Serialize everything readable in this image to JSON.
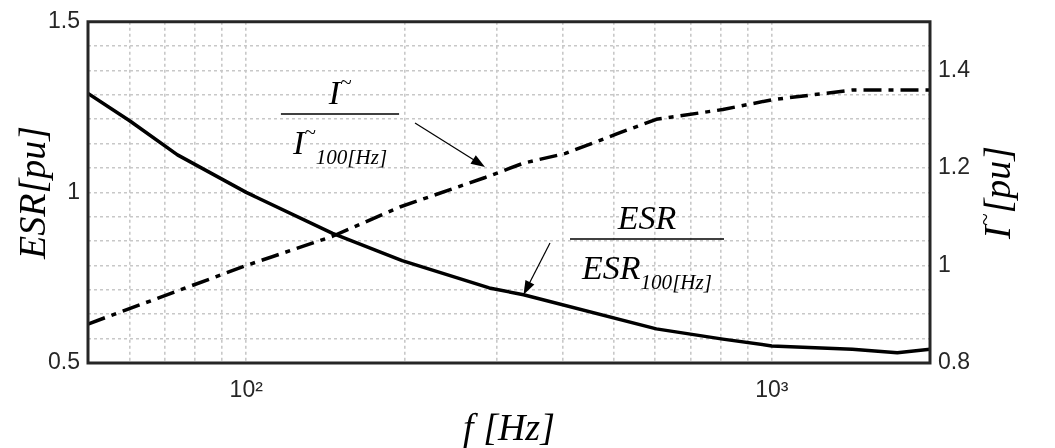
{
  "chart_data": {
    "type": "line",
    "xlabel": "f [Hz]",
    "ylabel": "ESR[pu]",
    "y2label": "I$^{~}$[pu]",
    "log": "x",
    "grid": true,
    "legend": false,
    "marker": "none",
    "xlim": [
      50,
      2000
    ],
    "xticks": [
      {
        "value": 60,
        "label": null
      },
      {
        "value": 70,
        "label": null
      },
      {
        "value": 80,
        "label": null
      },
      {
        "value": 90,
        "label": null
      },
      {
        "value": 100,
        "label": "10²"
      },
      {
        "value": 200,
        "label": null
      },
      {
        "value": 300,
        "label": null
      },
      {
        "value": 400,
        "label": null
      },
      {
        "value": 500,
        "label": null
      },
      {
        "value": 600,
        "label": null
      },
      {
        "value": 700,
        "label": null
      },
      {
        "value": 800,
        "label": null
      },
      {
        "value": 900,
        "label": null
      },
      {
        "value": 1000,
        "label": "10³"
      }
    ],
    "ylim": [
      0.5,
      1.5
    ],
    "yticks": [
      0.5,
      1,
      1.5
    ],
    "y2lim": [
      0.8,
      1.5
    ],
    "y2ticks": [
      0.8,
      {
        "value": 0.85,
        "label": null
      },
      {
        "value": 0.9,
        "label": null
      },
      {
        "value": 0.95,
        "label": null
      },
      1,
      {
        "value": 1.05,
        "label": null
      },
      {
        "value": 1.1,
        "label": null
      },
      {
        "value": 1.15,
        "label": null
      },
      1.2,
      {
        "value": 1.25,
        "label": null
      },
      {
        "value": 1.3,
        "label": null
      },
      {
        "value": 1.35,
        "label": null
      },
      1.4,
      {
        "value": 1.45,
        "label": null
      },
      {
        "value": 1.5,
        "label": null
      }
    ],
    "series": [
      {
        "color": "#000000",
        "line_style": "solid",
        "x": [
          50,
          60,
          74,
          100,
          146,
          198,
          290,
          337,
          603,
          807,
          1000,
          1423,
          1733,
          2000
        ],
        "values": [
          1.29,
          1.21,
          1.11,
          1.0,
          0.88,
          0.8,
          0.72,
          0.7,
          0.6,
          0.57,
          0.55,
          0.54,
          0.53,
          0.54
        ]
      },
      {
        "color": "#000000",
        "line_style": "dashed",
        "axis": "y2",
        "x": [
          50,
          100,
          146,
          196,
          284,
          337,
          405,
          507,
          603,
          807,
          1000,
          1423,
          2000
        ],
        "values": [
          0.88,
          1.0,
          1.06,
          1.12,
          1.18,
          1.21,
          1.23,
          1.27,
          1.3,
          1.32,
          1.34,
          1.36,
          1.36
        ]
      }
    ],
    "annotations": [
      "I$^{~}$",
      "I$^{~}$$_{100[Hz]}$",
      "ESR",
      {
        "text": "ESR$_{100[Hz]}$",
        "x": 337,
        "y": 0.7
      }
    ]
  }
}
